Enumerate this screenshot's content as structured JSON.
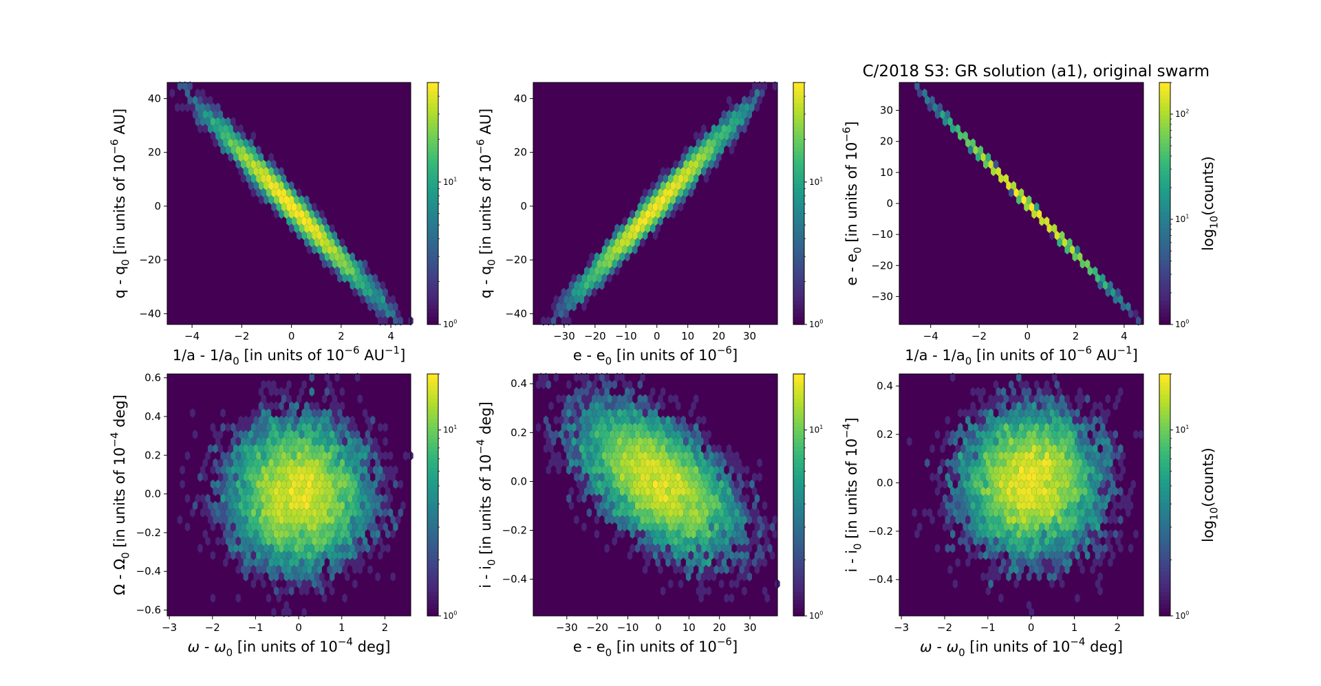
{
  "figure": {
    "title": "C/2018 S3: GR solution (a1), original swarm"
  },
  "colormap": [
    "#440154",
    "#482878",
    "#3e4989",
    "#31688e",
    "#26828e",
    "#1f9e89",
    "#35b779",
    "#6ece58",
    "#b5de2b",
    "#fde725"
  ],
  "chart_data": [
    {
      "id": "p1",
      "type": "heatmap",
      "kind": "hexbin",
      "xlabel": "1/a - 1/a<sub>0</sub> [in units of 10<sup>−6</sup> AU<sup>−1</sup>]",
      "ylabel": "q - q<sub>0</sub> [in units of 10<sup>−6</sup> AU]",
      "xlim": [
        -5.0,
        4.8
      ],
      "ylim": [
        -44,
        46
      ],
      "xticks": [
        -4,
        -2,
        0,
        2,
        4
      ],
      "yticks": [
        -40,
        -20,
        0,
        20,
        40
      ],
      "distribution": {
        "mean": [
          0,
          0
        ],
        "sd": [
          1.45,
          14.5
        ],
        "corr": -0.985,
        "xy_range": [
          [
            -4.7,
            38
          ],
          [
            4.5,
            -43
          ]
        ]
      },
      "colorbar": {
        "scale": "log",
        "range": [
          1,
          50
        ],
        "ticks": [
          "10<sup>0</sup>",
          "10<sup>1</sup>"
        ],
        "label": ""
      }
    },
    {
      "id": "p2",
      "type": "heatmap",
      "kind": "hexbin",
      "xlabel": "e - e<sub>0</sub> [in units of 10<sup>−6</sup>]",
      "ylabel": "q - q<sub>0</sub> [in units of 10<sup>−6</sup> AU]",
      "xlim": [
        -40,
        39
      ],
      "ylim": [
        -44,
        46
      ],
      "xticks": [
        -30,
        -20,
        -10,
        0,
        10,
        20,
        30
      ],
      "yticks": [
        -40,
        -20,
        0,
        20,
        40
      ],
      "distribution": {
        "mean": [
          0,
          0
        ],
        "sd": [
          11.5,
          14.5
        ],
        "corr": 0.985,
        "xy_range": [
          [
            -38,
            -40
          ],
          [
            33,
            36
          ]
        ]
      },
      "colorbar": {
        "scale": "log",
        "range": [
          1,
          50
        ],
        "ticks": [
          "10<sup>0</sup>",
          "10<sup>1</sup>"
        ],
        "label": ""
      }
    },
    {
      "id": "p3",
      "type": "heatmap",
      "kind": "hexbin",
      "xlabel": "1/a - 1/a<sub>0</sub> [in units of 10<sup>−6</sup> AU<sup>−1</sup>]",
      "ylabel": "e - e<sub>0</sub> [in units of 10<sup>−6</sup>]",
      "xlim": [
        -5.3,
        4.8
      ],
      "ylim": [
        -39,
        39
      ],
      "xticks": [
        -4,
        -2,
        0,
        2,
        4
      ],
      "yticks": [
        -30,
        -20,
        -10,
        0,
        10,
        20,
        30
      ],
      "distribution": {
        "mean": [
          0,
          0
        ],
        "sd": [
          1.45,
          11.8
        ],
        "corr": -0.99998,
        "xy_range": [
          [
            -4.7,
            35
          ],
          [
            3.8,
            -30
          ]
        ]
      },
      "colorbar": {
        "scale": "log",
        "range": [
          1,
          200
        ],
        "ticks": [
          "10<sup>0</sup>",
          "10<sup>1</sup>",
          "10<sup>2</sup>"
        ],
        "label": "log<sub>10</sub>(counts)"
      }
    },
    {
      "id": "p4",
      "type": "heatmap",
      "kind": "hexbin",
      "xlabel": "<tspan font-style=\"italic\">ω</tspan> - <tspan font-style=\"italic\">ω</tspan><sub>0</sub> [in units of 10<sup>−4</sup> deg]",
      "ylabel": "Ω - Ω<sub>0</sub> [in units of 10<sup>−4</sup> deg]",
      "xlim": [
        -3.05,
        2.6
      ],
      "ylim": [
        -0.63,
        0.62
      ],
      "xticks": [
        -3,
        -2,
        -1,
        0,
        1,
        2
      ],
      "yticks": [
        -0.6,
        -0.4,
        -0.2,
        0.0,
        0.2,
        0.4,
        0.6
      ],
      "ytick_format": 1,
      "distribution": {
        "mean": [
          0,
          0
        ],
        "sd": [
          0.75,
          0.18
        ],
        "corr": 0.0,
        "xy_range": [
          [
            -2.6,
            -0.6
          ],
          [
            2.4,
            0.6
          ]
        ]
      },
      "colorbar": {
        "scale": "log",
        "range": [
          1,
          20
        ],
        "ticks": [
          "10<sup>0</sup>",
          "10<sup>1</sup>"
        ],
        "label": ""
      }
    },
    {
      "id": "p5",
      "type": "heatmap",
      "kind": "hexbin",
      "xlabel": "e - e<sub>0</sub> [in units of 10<sup>−6</sup>]",
      "ylabel": "i - i<sub>0</sub> [in units of 10<sup>−4</sup> deg]",
      "xlim": [
        -41,
        39
      ],
      "ylim": [
        -0.55,
        0.44
      ],
      "xticks": [
        -30,
        -20,
        -10,
        0,
        10,
        20,
        30
      ],
      "yticks": [
        -0.4,
        -0.2,
        0.0,
        0.2,
        0.4
      ],
      "ytick_format": 1,
      "distribution": {
        "mean": [
          0,
          0
        ],
        "sd": [
          12,
          0.14
        ],
        "corr": -0.55,
        "xy_range": [
          [
            -38,
            -0.5
          ],
          [
            38,
            0.4
          ]
        ]
      },
      "colorbar": {
        "scale": "log",
        "range": [
          1,
          20
        ],
        "ticks": [
          "10<sup>0</sup>",
          "10<sup>1</sup>"
        ],
        "label": ""
      }
    },
    {
      "id": "p6",
      "type": "heatmap",
      "kind": "hexbin",
      "xlabel": "<tspan font-style=\"italic\">ω</tspan> - <tspan font-style=\"italic\">ω</tspan><sub>0</sub> [in units of 10<sup>−4</sup> deg]",
      "ylabel": "i - i<sub>0</sub> [in units of 10<sup>−4</sup>]",
      "xlim": [
        -3.05,
        2.6
      ],
      "ylim": [
        -0.55,
        0.45
      ],
      "xticks": [
        -3,
        -2,
        -1,
        0,
        1,
        2
      ],
      "yticks": [
        -0.4,
        -0.2,
        0.0,
        0.2,
        0.4
      ],
      "ytick_format": 1,
      "distribution": {
        "mean": [
          0,
          0
        ],
        "sd": [
          0.75,
          0.14
        ],
        "corr": 0.0,
        "xy_range": [
          [
            -2.6,
            -0.5
          ],
          [
            2.5,
            0.42
          ]
        ]
      },
      "colorbar": {
        "scale": "log",
        "range": [
          1,
          20
        ],
        "ticks": [
          "10<sup>0</sup>",
          "10<sup>1</sup>"
        ],
        "label": "log<sub>10</sub>(counts)"
      }
    }
  ]
}
